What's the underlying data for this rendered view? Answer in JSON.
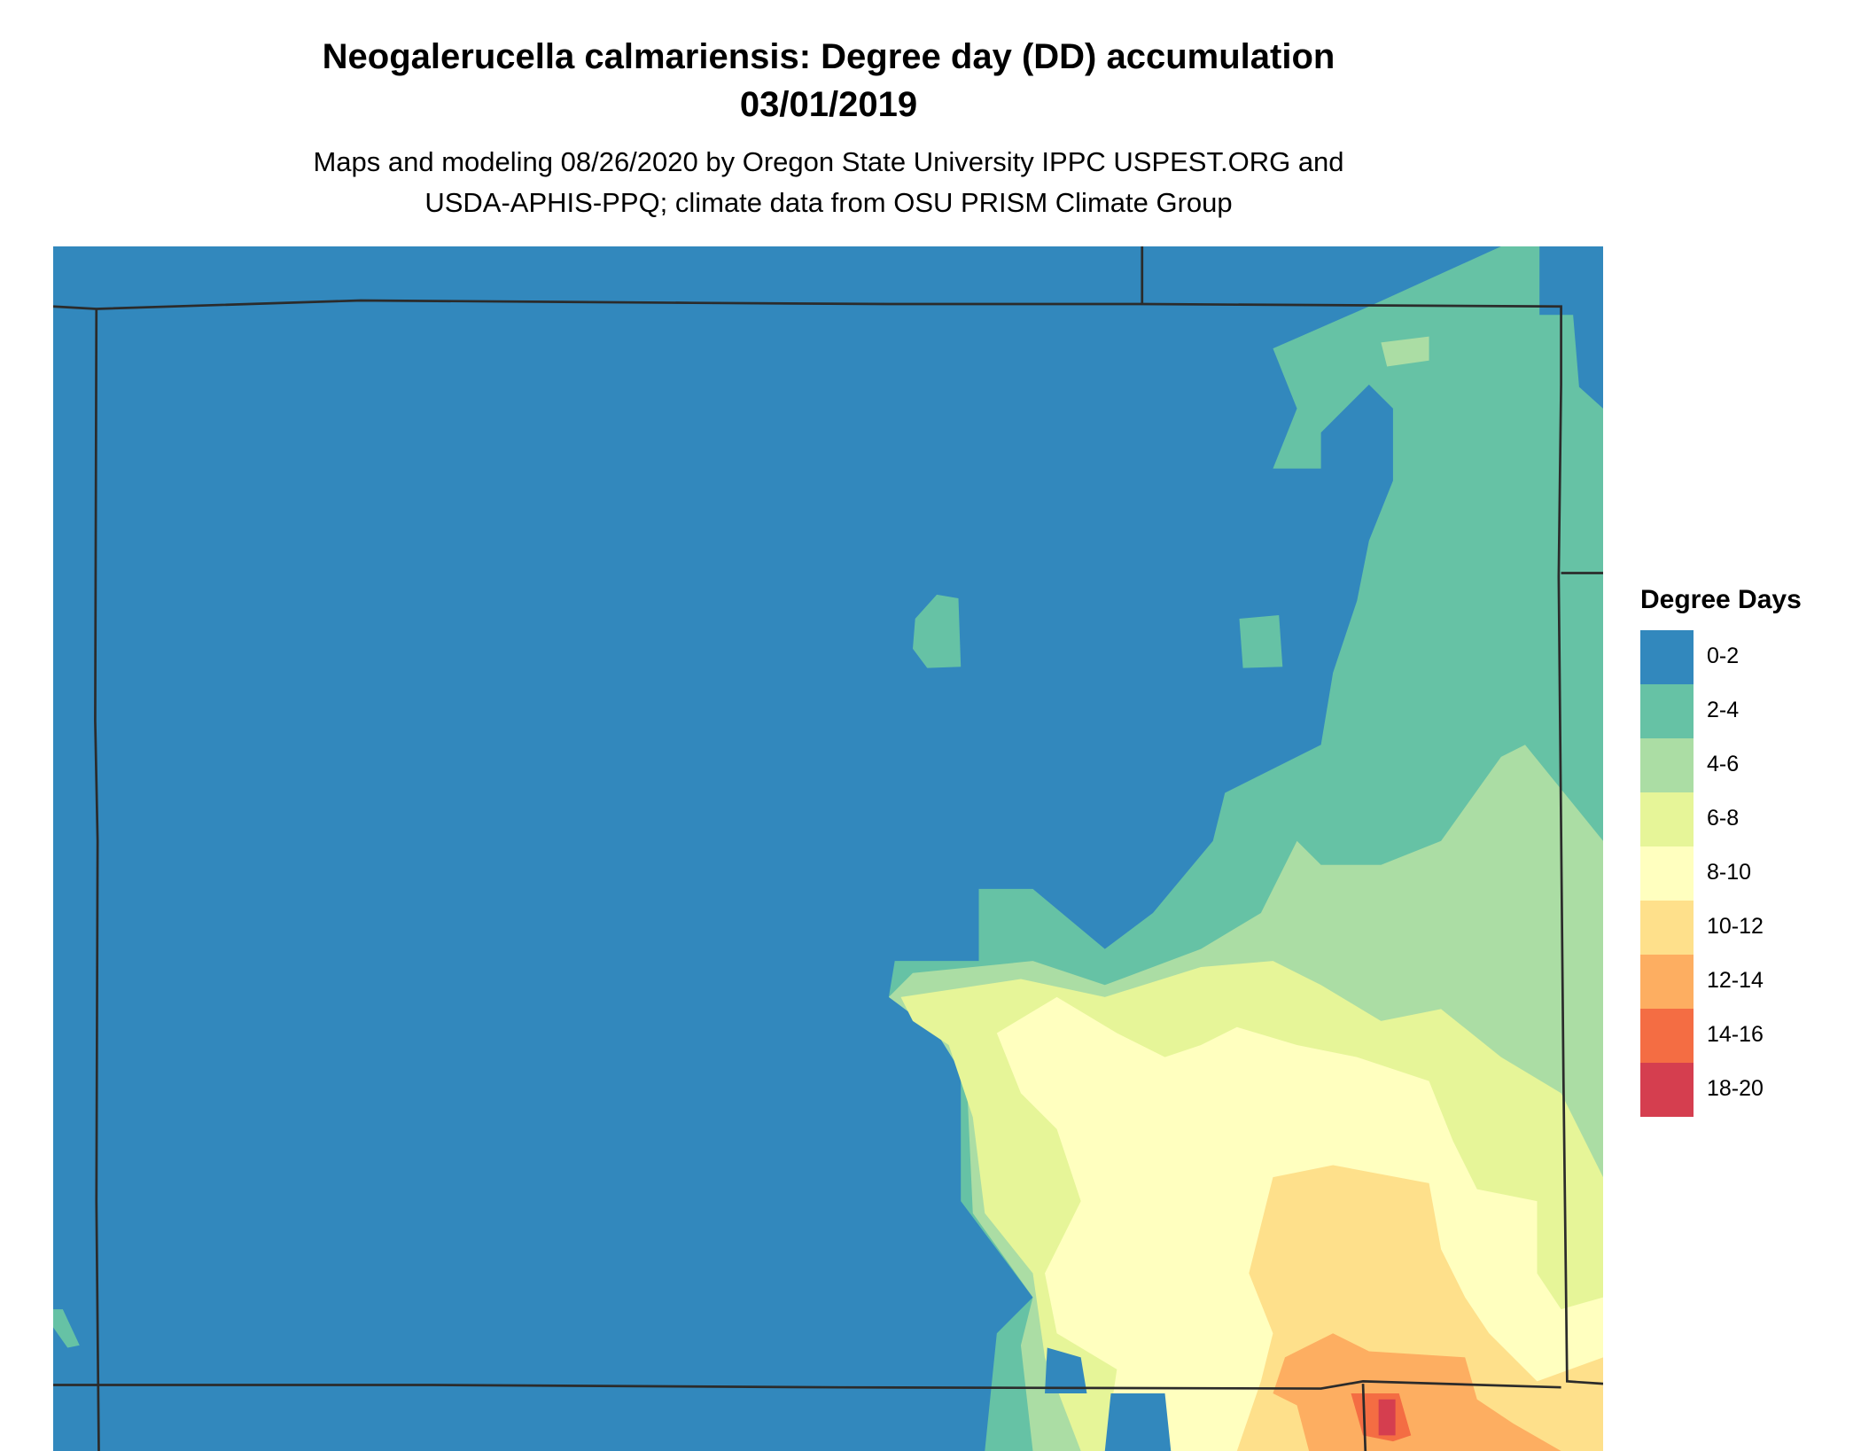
{
  "title": {
    "line1": "Neogalerucella calmariensis: Degree day (DD) accumulation",
    "line2": "03/01/2019"
  },
  "subtitle": {
    "line1": "Maps and modeling 08/26/2020 by Oregon State University IPPC USPEST.ORG and",
    "line2": "USDA-APHIS-PPQ; climate data from OSU PRISM Climate Group"
  },
  "legend": {
    "title": "Degree Days",
    "items": [
      {
        "label": "0-2",
        "color": "#3288bd"
      },
      {
        "label": "2-4",
        "color": "#66c2a5"
      },
      {
        "label": "4-6",
        "color": "#abdda4"
      },
      {
        "label": "6-8",
        "color": "#e6f598"
      },
      {
        "label": "8-10",
        "color": "#ffffbf"
      },
      {
        "label": "10-12",
        "color": "#fee08b"
      },
      {
        "label": "12-14",
        "color": "#fdae61"
      },
      {
        "label": "14-16",
        "color": "#f46d43"
      },
      {
        "label": "18-20",
        "color": "#d53e4f"
      }
    ]
  }
}
